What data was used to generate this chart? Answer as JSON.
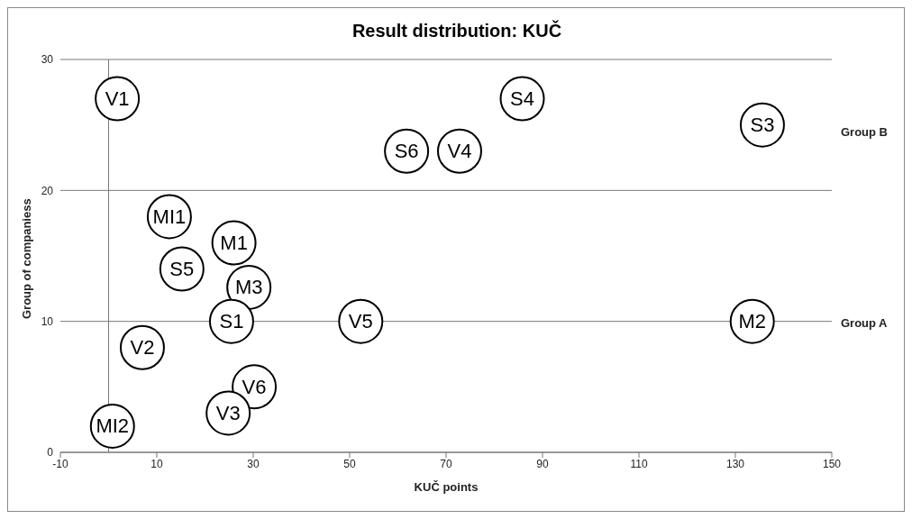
{
  "chart_data": {
    "type": "scatter",
    "title": "Result distribution: KUČ",
    "xlabel": "KUČ points",
    "ylabel": "Group of companiess",
    "xlim": [
      -10,
      150
    ],
    "xticks": [
      -10,
      10,
      30,
      50,
      70,
      90,
      110,
      130,
      150
    ],
    "ylim": [
      0,
      30
    ],
    "yticks": [
      0,
      10,
      20,
      30
    ],
    "grid": "y",
    "legend": false,
    "marker": "circle",
    "series": [
      {
        "name": "V1",
        "color": "#000000",
        "x": [
          1.8
        ],
        "values": [
          27
        ]
      },
      {
        "name": "S4",
        "color": "#000000",
        "x": [
          85.8
        ],
        "values": [
          27
        ]
      },
      {
        "name": "S3",
        "color": "#000000",
        "x": [
          135.6
        ],
        "values": [
          25
        ]
      },
      {
        "name": "S6",
        "color": "#000000",
        "x": [
          61.8
        ],
        "values": [
          23
        ]
      },
      {
        "name": "V4",
        "color": "#000000",
        "x": [
          72.8
        ],
        "values": [
          23
        ]
      },
      {
        "name": "MI1",
        "color": "#000000",
        "x": [
          12.6
        ],
        "values": [
          18
        ]
      },
      {
        "name": "M1",
        "color": "#000000",
        "x": [
          26
        ],
        "values": [
          16
        ]
      },
      {
        "name": "S5",
        "color": "#000000",
        "x": [
          15.2
        ],
        "values": [
          14
        ]
      },
      {
        "name": "M3",
        "color": "#000000",
        "x": [
          29.1
        ],
        "values": [
          12.6
        ]
      },
      {
        "name": "S1",
        "color": "#000000",
        "x": [
          25.5
        ],
        "values": [
          10
        ]
      },
      {
        "name": "V5",
        "color": "#000000",
        "x": [
          52.3
        ],
        "values": [
          10
        ]
      },
      {
        "name": "M2",
        "color": "#000000",
        "x": [
          133.5
        ],
        "values": [
          10
        ]
      },
      {
        "name": "V2",
        "color": "#000000",
        "x": [
          7
        ],
        "values": [
          8
        ]
      },
      {
        "name": "V6",
        "color": "#000000",
        "x": [
          30.2
        ],
        "values": [
          5
        ]
      },
      {
        "name": "V3",
        "color": "#000000",
        "x": [
          24.8
        ],
        "values": [
          3
        ]
      },
      {
        "name": "MI2",
        "color": "#000000",
        "x": [
          0.8
        ],
        "values": [
          2
        ]
      }
    ],
    "annotations": [
      "Group B",
      "Group A"
    ]
  }
}
